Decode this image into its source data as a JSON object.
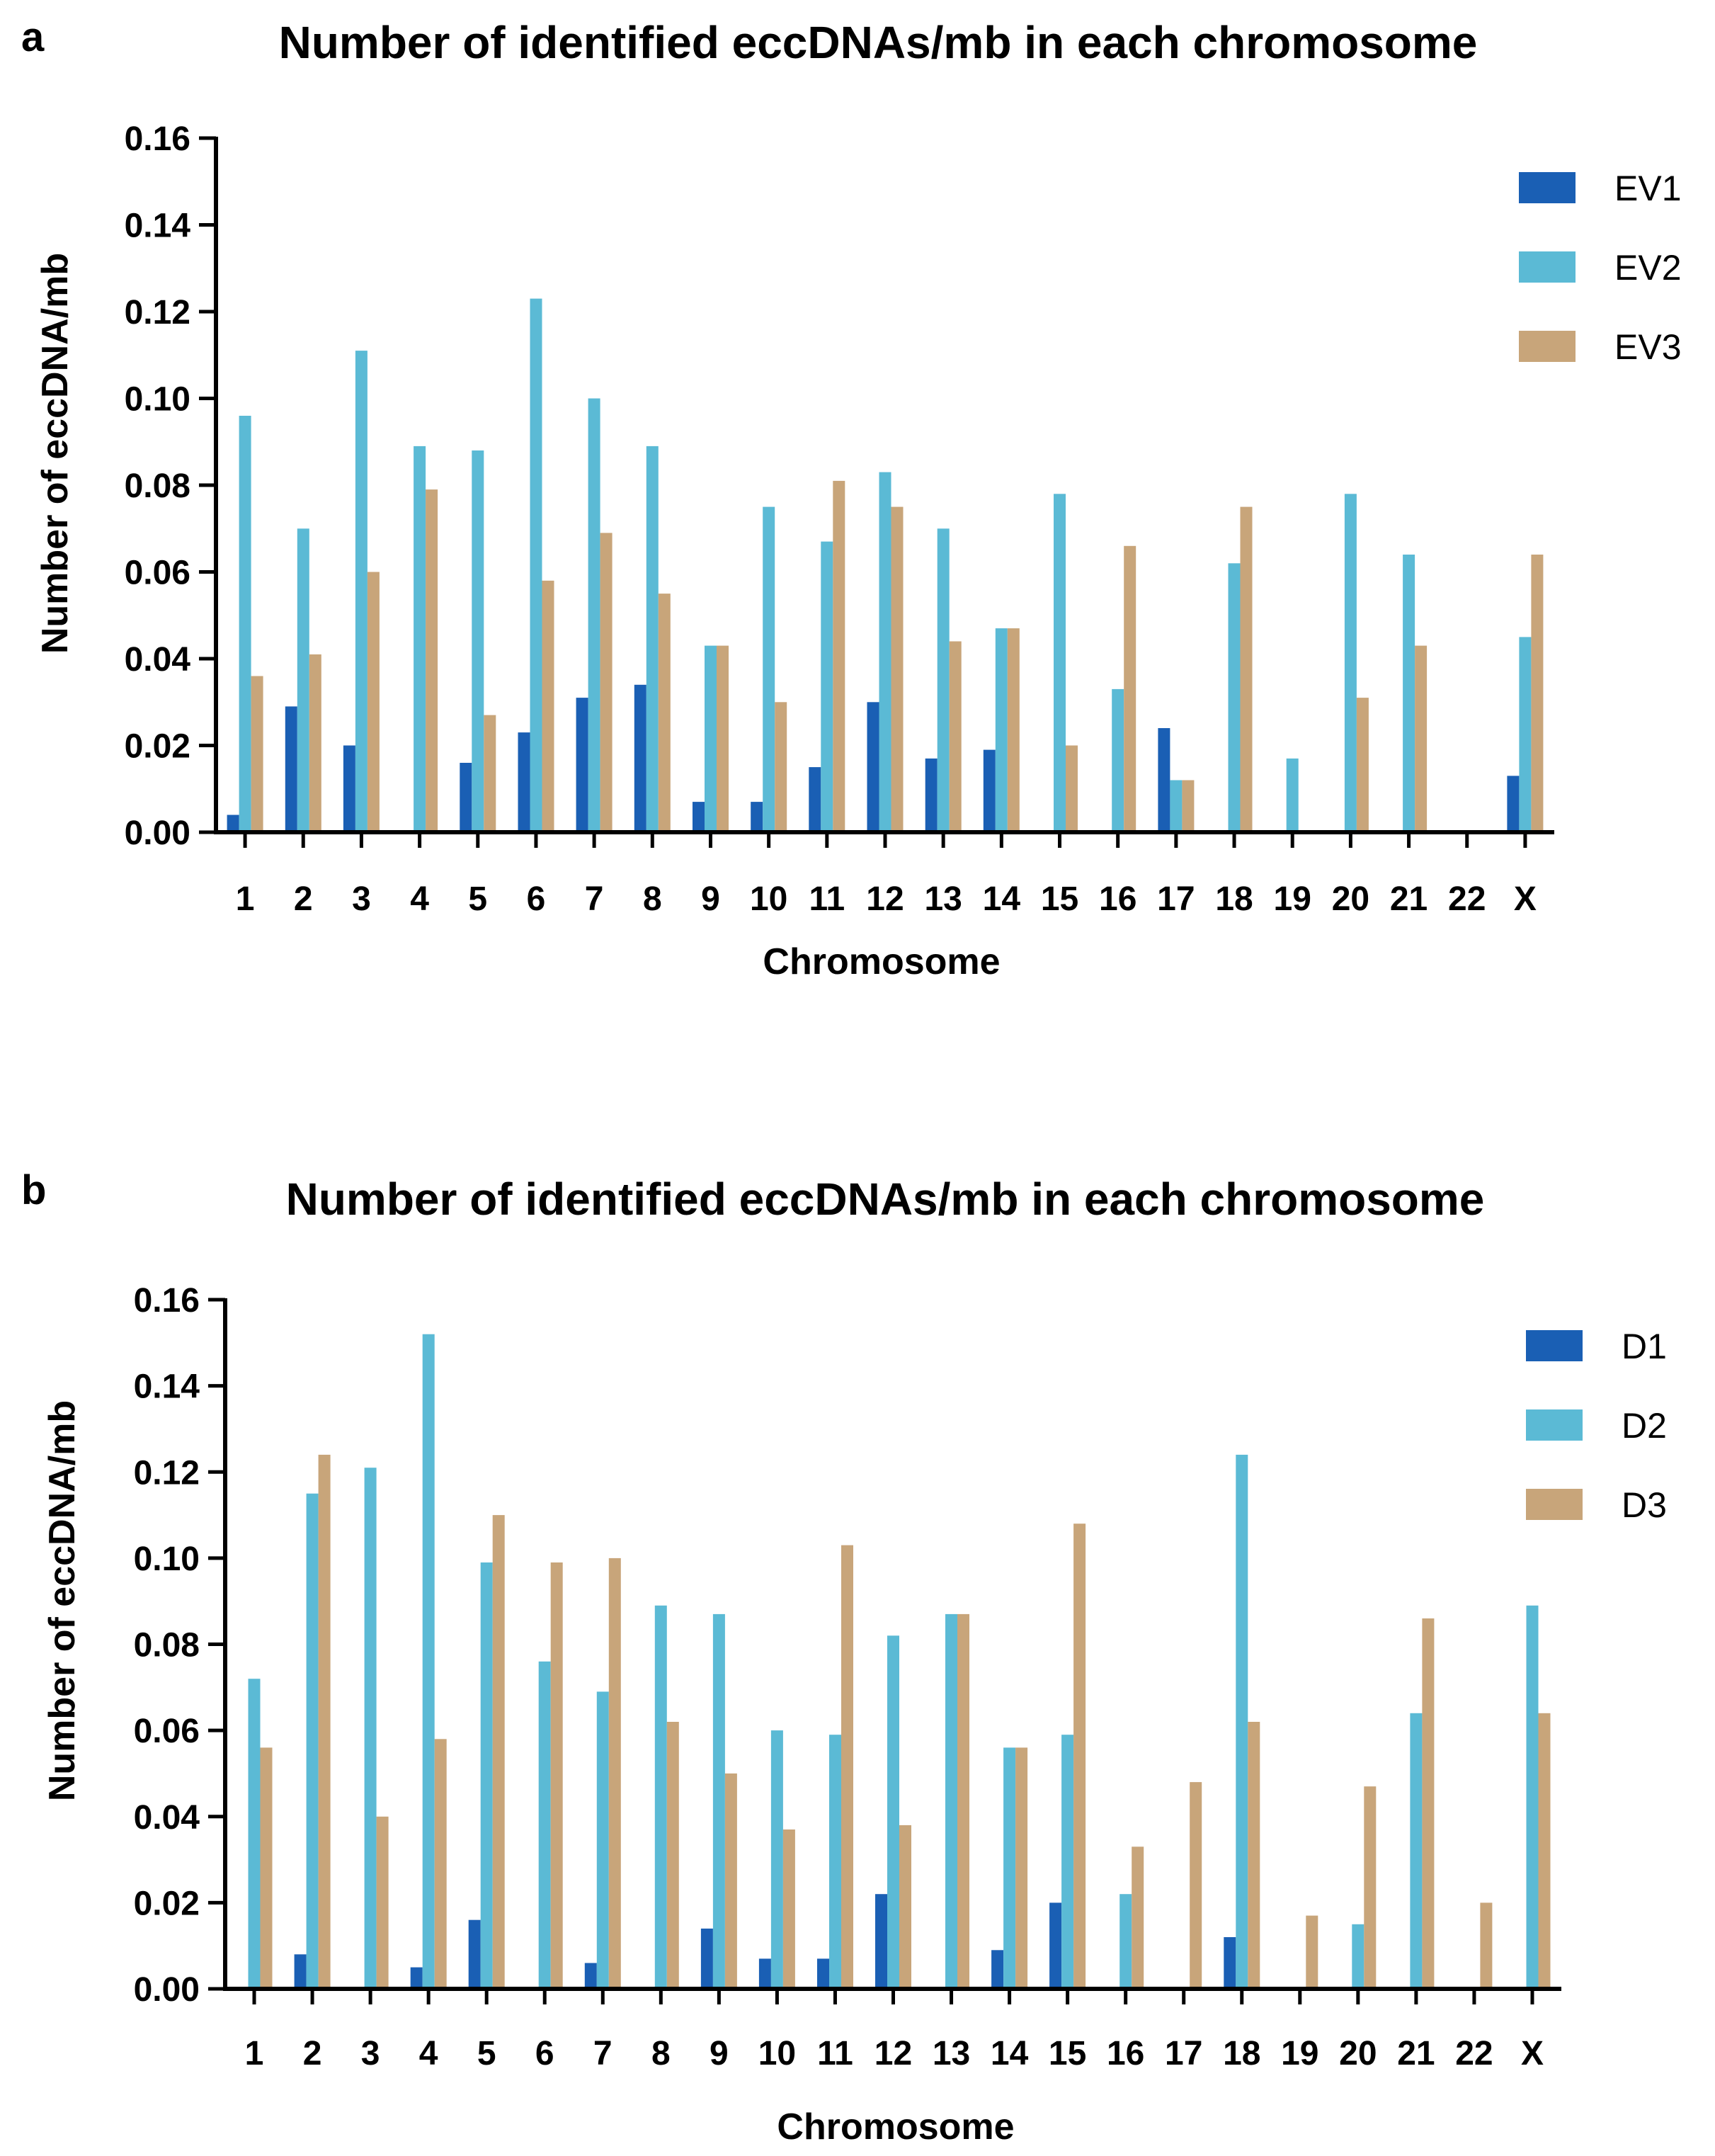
{
  "chart_data": [
    {
      "panel": "a",
      "type": "bar",
      "title": "Number of identified eccDNAs/mb in each chromosome",
      "xlabel": "Chromosome",
      "ylabel": "Number of eccDNA/mb",
      "ylim": [
        0,
        0.16
      ],
      "yticks": [
        "0.00",
        "0.02",
        "0.04",
        "0.06",
        "0.08",
        "0.10",
        "0.12",
        "0.14",
        "0.16"
      ],
      "categories": [
        "1",
        "2",
        "3",
        "4",
        "5",
        "6",
        "7",
        "8",
        "9",
        "10",
        "11",
        "12",
        "13",
        "14",
        "15",
        "16",
        "17",
        "18",
        "19",
        "20",
        "21",
        "22",
        "X"
      ],
      "legend_position": "top-right",
      "series": [
        {
          "name": "EV1",
          "color": "#1a5fb4",
          "values": [
            0.004,
            0.029,
            0.02,
            0,
            0.016,
            0.023,
            0.031,
            0.034,
            0.007,
            0.007,
            0.015,
            0.03,
            0.017,
            0.019,
            0,
            0,
            0.024,
            0,
            0,
            0,
            0,
            0,
            0.013
          ]
        },
        {
          "name": "EV2",
          "color": "#5bbad5",
          "values": [
            0.096,
            0.07,
            0.111,
            0.089,
            0.088,
            0.123,
            0.1,
            0.089,
            0.043,
            0.075,
            0.067,
            0.083,
            0.07,
            0.047,
            0.078,
            0.033,
            0.012,
            0.062,
            0.017,
            0.078,
            0.064,
            0,
            0.045
          ]
        },
        {
          "name": "EV3",
          "color": "#c8a57a",
          "values": [
            0.036,
            0.041,
            0.06,
            0.079,
            0.027,
            0.058,
            0.069,
            0.055,
            0.043,
            0.03,
            0.081,
            0.075,
            0.044,
            0.047,
            0.02,
            0.066,
            0.012,
            0.075,
            0,
            0.031,
            0.043,
            0,
            0.064
          ]
        }
      ]
    },
    {
      "panel": "b",
      "type": "bar",
      "title": "Number of identified eccDNAs/mb in each chromosome",
      "xlabel": "Chromosome",
      "ylabel": "Number of eccDNA/mb",
      "ylim": [
        0,
        0.16
      ],
      "yticks": [
        "0.00",
        "0.02",
        "0.04",
        "0.06",
        "0.08",
        "0.10",
        "0.12",
        "0.14",
        "0.16"
      ],
      "categories": [
        "1",
        "2",
        "3",
        "4",
        "5",
        "6",
        "7",
        "8",
        "9",
        "10",
        "11",
        "12",
        "13",
        "14",
        "15",
        "16",
        "17",
        "18",
        "19",
        "20",
        "21",
        "22",
        "X"
      ],
      "legend_position": "top-right",
      "series": [
        {
          "name": "D1",
          "color": "#1a5fb4",
          "values": [
            0,
            0.008,
            0,
            0.005,
            0.016,
            0,
            0.006,
            0,
            0.014,
            0.007,
            0.007,
            0.022,
            0,
            0.009,
            0.02,
            0,
            0,
            0.012,
            0,
            0,
            0,
            0,
            0
          ]
        },
        {
          "name": "D2",
          "color": "#5bbad5",
          "values": [
            0.072,
            0.115,
            0.121,
            0.152,
            0.099,
            0.076,
            0.069,
            0.089,
            0.087,
            0.06,
            0.059,
            0.082,
            0.087,
            0.056,
            0.059,
            0.022,
            0,
            0.124,
            0,
            0.015,
            0.064,
            0,
            0.089
          ]
        },
        {
          "name": "D3",
          "color": "#c8a57a",
          "values": [
            0.056,
            0.124,
            0.04,
            0.058,
            0.11,
            0.099,
            0.1,
            0.062,
            0.05,
            0.037,
            0.103,
            0.038,
            0.087,
            0.056,
            0.108,
            0.033,
            0.048,
            0.062,
            0.017,
            0.047,
            0.086,
            0.02,
            0.064
          ]
        }
      ]
    }
  ]
}
